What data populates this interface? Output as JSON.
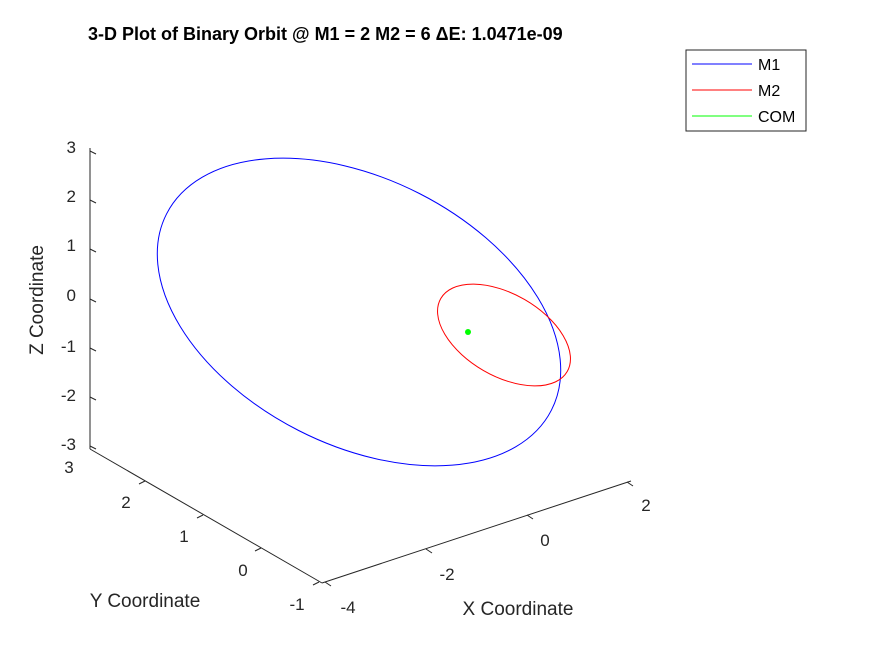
{
  "chart_data": {
    "type": "line",
    "title": "3-D Plot of Binary Orbit @ M1 = 2 M2 = 6 ΔE: 1.0471e-09",
    "xlabel": "X Coordinate",
    "ylabel": "Y Coordinate",
    "zlabel": "Z Coordinate",
    "xticks": [
      "-4",
      "-2",
      "0",
      "2"
    ],
    "yticks": [
      "-1",
      "0",
      "1",
      "2",
      "3"
    ],
    "zticks": [
      "-3",
      "-2",
      "-1",
      "0",
      "1",
      "2",
      "3"
    ],
    "xlim": [
      -4,
      2.5
    ],
    "ylim": [
      -1,
      3
    ],
    "zlim": [
      -3,
      3
    ],
    "grid": false,
    "legend_position": "top-right",
    "series": [
      {
        "name": "M1",
        "color": "#0000ff",
        "shape": "ellipse"
      },
      {
        "name": "M2",
        "color": "#ff0000",
        "shape": "ellipse"
      },
      {
        "name": "COM",
        "color": "#00ff00",
        "shape": "point",
        "point": [
          -0.75,
          1.0,
          -0.7
        ]
      }
    ]
  }
}
